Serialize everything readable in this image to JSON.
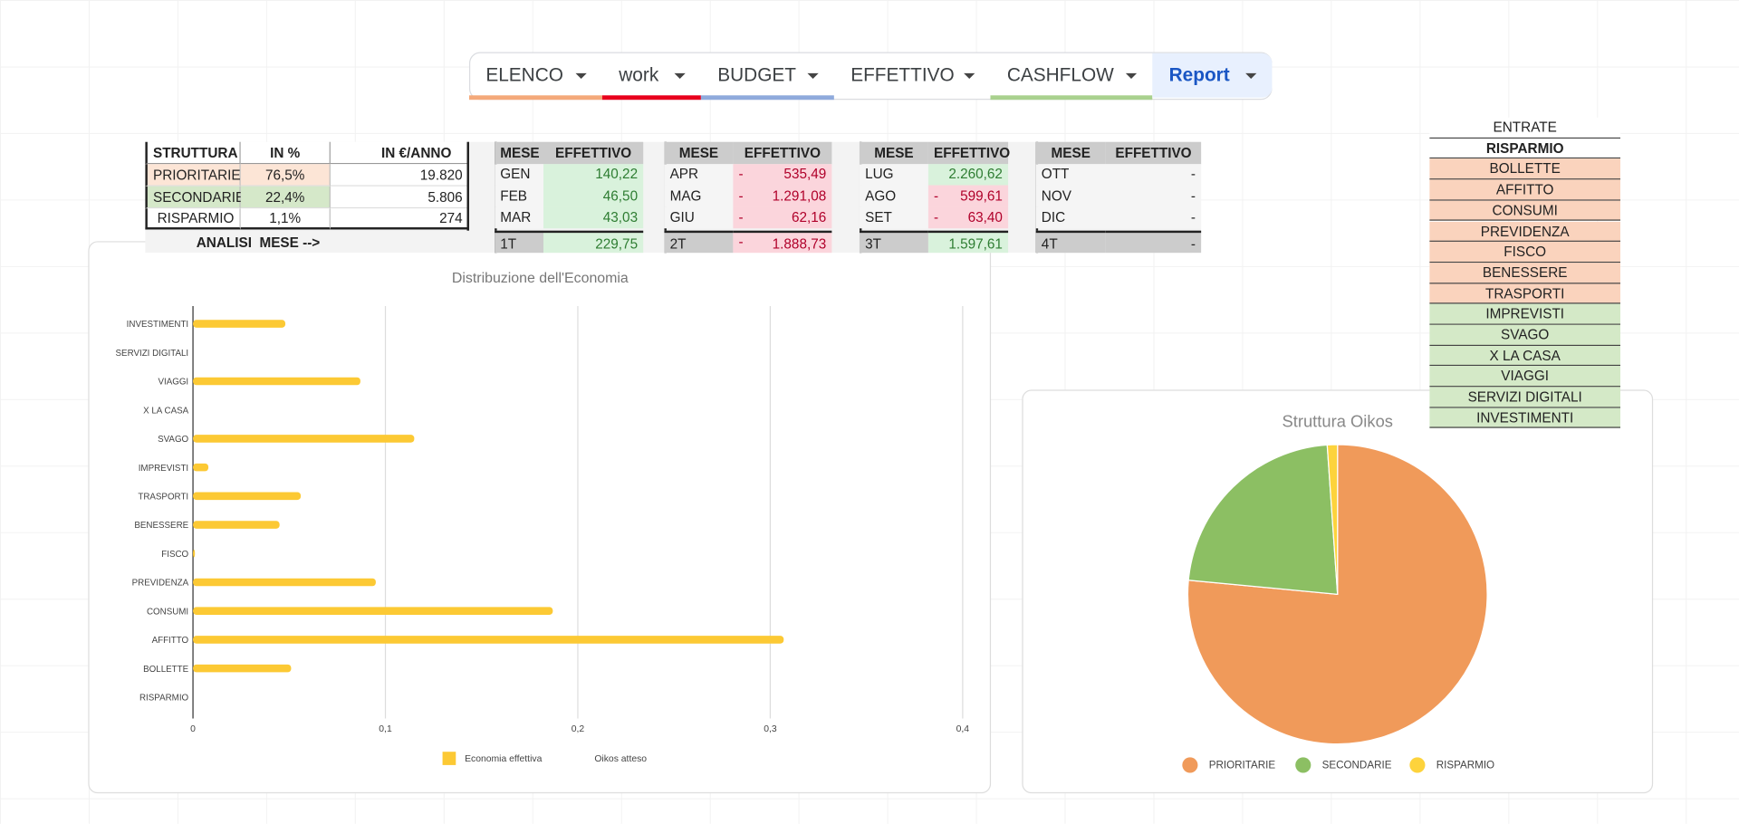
{
  "tabs": [
    {
      "label": "ELENCO",
      "color": "#f4a97a"
    },
    {
      "label": "work",
      "color": "#e8001c"
    },
    {
      "label": "BUDGET",
      "color": "#8faadc"
    },
    {
      "label": "EFFETTIVO"
    },
    {
      "label": "CASHFLOW",
      "color": "#a9d18e"
    },
    {
      "label": "Report"
    }
  ],
  "struttura": {
    "headers": [
      "STRUTTURA",
      "IN %",
      "IN €/ANNO"
    ],
    "rows": [
      [
        "PRIORITARIE",
        "76,5%",
        "19.820"
      ],
      [
        "SECONDARIE",
        "22,4%",
        "5.806"
      ],
      [
        "RISPARMIO",
        "1,1%",
        "274"
      ]
    ],
    "footer": "ANALISI  MESE -->"
  },
  "quarters": [
    {
      "headers": [
        "MESE",
        "EFFETTIVO"
      ],
      "rows": [
        {
          "mese": "GEN",
          "effettivo": "140,22"
        },
        {
          "mese": "FEB",
          "effettivo": "46,50"
        },
        {
          "mese": "MAR",
          "effettivo": "43,03"
        }
      ],
      "total": {
        "mese": "1T",
        "effettivo": "229,75"
      }
    },
    {
      "headers": [
        "MESE",
        "EFFETTIVO"
      ],
      "rows": [
        {
          "mese": "APR",
          "sign": "-",
          "effettivo": "535,49"
        },
        {
          "mese": "MAG",
          "sign": "-",
          "effettivo": "1.291,08"
        },
        {
          "mese": "GIU",
          "sign": "-",
          "effettivo": "62,16"
        }
      ],
      "total": {
        "mese": "2T",
        "sign": "-",
        "effettivo": "1.888,73"
      }
    },
    {
      "headers": [
        "MESE",
        "EFFETTIVO"
      ],
      "rows": [
        {
          "mese": "LUG",
          "effettivo": "2.260,62"
        },
        {
          "mese": "AGO",
          "sign": "-",
          "effettivo": "599,61"
        },
        {
          "mese": "SET",
          "sign": "-",
          "effettivo": "63,40"
        }
      ],
      "total": {
        "mese": "3T",
        "effettivo": "1.597,61"
      }
    },
    {
      "headers": [
        "MESE",
        "EFFETTIVO"
      ],
      "rows": [
        {
          "mese": "OTT",
          "effettivo": "-"
        },
        {
          "mese": "NOV",
          "effettivo": "-"
        },
        {
          "mese": "DIC",
          "effettivo": "-"
        }
      ],
      "total": {
        "mese": "4T",
        "effettivo": "-"
      }
    }
  ],
  "side_list": [
    {
      "label": "ENTRATE",
      "color": "#ffffff"
    },
    {
      "label": "RISPARMIO",
      "color": "#ffffff"
    },
    {
      "label": "BOLLETTE",
      "color": "#fad3bd"
    },
    {
      "label": "AFFITTO",
      "color": "#fad3bd"
    },
    {
      "label": "CONSUMI",
      "color": "#fad3bd"
    },
    {
      "label": "PREVIDENZA",
      "color": "#fad3bd"
    },
    {
      "label": "FISCO",
      "color": "#fad3bd"
    },
    {
      "label": "BENESSERE",
      "color": "#fad3bd"
    },
    {
      "label": "TRASPORTI",
      "color": "#fad3bd"
    },
    {
      "label": "IMPREVISTI",
      "color": "#d4e9c7"
    },
    {
      "label": "SVAGO",
      "color": "#d4e9c7"
    },
    {
      "label": "X LA CASA",
      "color": "#d4e9c7"
    },
    {
      "label": "VIAGGI",
      "color": "#d4e9c7"
    },
    {
      "label": "SERVIZI DIGITALI",
      "color": "#d4e9c7"
    },
    {
      "label": "INVESTIMENTI",
      "color": "#d4e9c7"
    }
  ],
  "chart_data": [
    {
      "type": "hbar",
      "title": "Distribuzione dell'Economia",
      "categories": [
        "INVESTIMENTI",
        "SERVIZI DIGITALI",
        "VIAGGI",
        "X LA CASA",
        "SVAGO",
        "IMPREVISTI",
        "TRASPORTI",
        "BENESSERE",
        "FISCO",
        "PREVIDENZA",
        "CONSUMI",
        "AFFITTO",
        "BOLLETTE",
        "RISPARMIO"
      ],
      "series": [
        {
          "name": "Economia effettiva",
          "color": "#fcc934",
          "values": [
            0.048,
            0,
            0.087,
            0,
            0.115,
            0.008,
            0.056,
            0.045,
            0.001,
            0.095,
            0.187,
            0.307,
            0.051,
            0
          ]
        },
        {
          "name": "Oikos atteso",
          "values": [
            null,
            null,
            null,
            null,
            null,
            null,
            null,
            null,
            null,
            null,
            null,
            null,
            null,
            null
          ]
        }
      ],
      "xlim": [
        0,
        0.4
      ],
      "xticks": [
        0,
        {
          "value": 0.1,
          "label": "0,1"
        },
        {
          "value": 0.2,
          "label": "0,2"
        },
        {
          "value": 0.3,
          "label": "0,3"
        },
        {
          "value": 0.4,
          "label": "0,4"
        }
      ],
      "grid": true
    },
    {
      "type": "pie",
      "title": "Struttura Oikos",
      "categories": [
        "PRIORITARIE",
        "SECONDARIE",
        "RISPARMIO"
      ],
      "values": [
        76.5,
        22.4,
        1.1
      ],
      "colors": [
        "#f09a5a",
        "#8cbf63",
        "#fdd33c"
      ]
    }
  ]
}
